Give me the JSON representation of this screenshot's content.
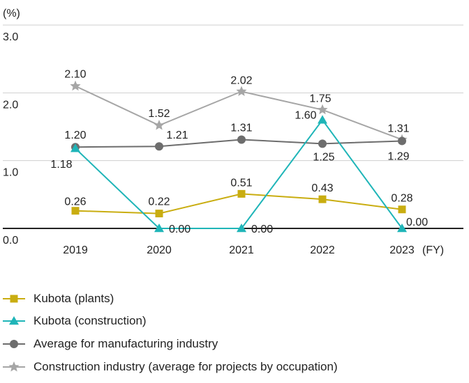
{
  "chart_data": {
    "type": "line",
    "unit_label": "(%)",
    "x_unit_label": "(FY)",
    "categories": [
      "2019",
      "2020",
      "2021",
      "2022",
      "2023"
    ],
    "ylim": [
      0,
      3.0
    ],
    "yticks": [
      "0.0",
      "1.0",
      "2.0",
      "3.0"
    ],
    "grid": true,
    "legend_placement": "bottom",
    "series": [
      {
        "name": "Kubota (plants)",
        "marker": "square",
        "color": "#c9ad10",
        "values": [
          0.26,
          0.22,
          0.51,
          0.43,
          0.28
        ],
        "labels": [
          "0.26",
          "0.22",
          "0.51",
          "0.43",
          "0.28"
        ]
      },
      {
        "name": "Kubota (construction)",
        "marker": "triangle",
        "color": "#1fb5b8",
        "values": [
          1.18,
          0.0,
          0.0,
          1.6,
          0.0
        ],
        "labels": [
          "1.18",
          "0.00",
          "0.00",
          "1.60",
          "0.00"
        ]
      },
      {
        "name": "Average for manufacturing industry",
        "marker": "circle",
        "color": "#6d6d6d",
        "values": [
          1.2,
          1.21,
          1.31,
          1.25,
          1.29
        ],
        "labels": [
          "1.20",
          "1.21",
          "1.31",
          "1.25",
          "1.29"
        ]
      },
      {
        "name": "Construction industry (average for projects by occupation)",
        "marker": "star",
        "color": "#a6a6a6",
        "values": [
          2.1,
          1.52,
          2.02,
          1.75,
          1.31
        ],
        "labels": [
          "2.10",
          "1.52",
          "2.02",
          "1.75",
          "1.31"
        ]
      }
    ]
  }
}
